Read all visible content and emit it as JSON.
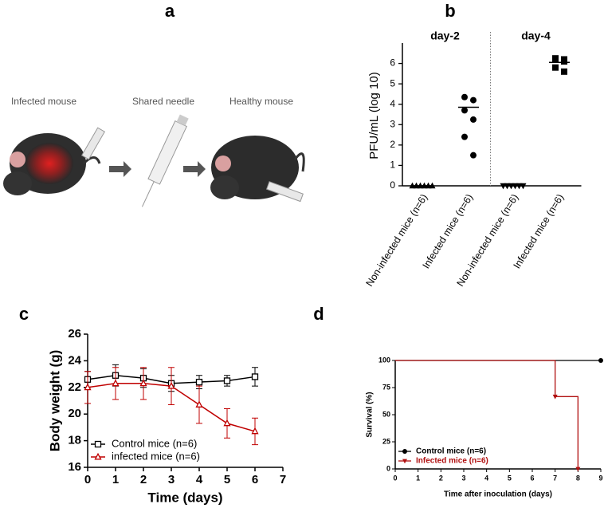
{
  "illustration": {
    "label": "a",
    "captions": [
      "Infected mouse",
      "Shared needle",
      "Healthy mouse"
    ]
  },
  "chart_data": [
    {
      "type": "dot",
      "panel_label": "b",
      "ylabel": "PFU/mL (log 10)",
      "categories": [
        "Non-infected mice (n=6)",
        "Infected mice (n=6)",
        "Non-infected mice (n=6)",
        "Infected mice (n=6)"
      ],
      "groups": [
        "day-2",
        "day-4"
      ],
      "points": [
        [
          0,
          0,
          0,
          0,
          0,
          0
        ],
        [
          4.35,
          4.2,
          3.7,
          3.25,
          2.4,
          1.5
        ],
        [
          0,
          0,
          0,
          0,
          0,
          0
        ],
        [
          6.25,
          6.2,
          6.2,
          6.1,
          5.8,
          5.6
        ]
      ],
      "medians": [
        0,
        3.85,
        0,
        6.05
      ],
      "markers": [
        "triangle",
        "circle",
        "triangle-down",
        "square"
      ],
      "color": "#000000",
      "ylim": [
        0,
        7
      ],
      "yticks": [
        0,
        1,
        2,
        3,
        4,
        5,
        6
      ]
    },
    {
      "type": "line",
      "panel_label": "c",
      "xlabel": "Time (days)",
      "ylabel": "Body weight (g)",
      "x": [
        0,
        1,
        2,
        3,
        4,
        5,
        6
      ],
      "series": [
        {
          "name": "Control mice (n=6)",
          "color": "#000000",
          "marker": "square",
          "values": [
            22.6,
            22.9,
            22.7,
            22.3,
            22.4,
            22.5,
            22.8
          ],
          "errors": [
            0.6,
            0.8,
            0.7,
            0.6,
            0.5,
            0.4,
            0.7
          ]
        },
        {
          "name": "infected mice (n=6)",
          "color": "#c00000",
          "marker": "triangle",
          "values": [
            22.0,
            22.3,
            22.3,
            22.1,
            20.7,
            19.3,
            18.7
          ],
          "errors": [
            1.2,
            1.2,
            1.2,
            1.4,
            1.4,
            1.1,
            1.0
          ]
        }
      ],
      "xlim": [
        0,
        7
      ],
      "xticks": [
        0,
        1,
        2,
        3,
        4,
        5,
        6,
        7
      ],
      "ylim": [
        16,
        26
      ],
      "yticks": [
        16,
        18,
        20,
        22,
        24,
        26
      ],
      "legend": "lower-left"
    },
    {
      "type": "step",
      "panel_label": "d",
      "xlabel": "Time after inoculation (days)",
      "ylabel": "Survival (%)",
      "series": [
        {
          "name": "Control mice (n=6)",
          "color": "#000000",
          "marker": "circle",
          "x": [
            0,
            9
          ],
          "values": [
            100,
            100
          ]
        },
        {
          "name": "Infected mice (n=6)",
          "color": "#b01010",
          "marker": "triangle-down",
          "x": [
            0,
            7,
            8
          ],
          "values": [
            100,
            66.7,
            0
          ]
        }
      ],
      "xlim": [
        0,
        9
      ],
      "xticks": [
        0,
        1,
        2,
        3,
        4,
        5,
        6,
        7,
        8,
        9
      ],
      "ylim": [
        0,
        100
      ],
      "yticks": [
        0,
        25,
        50,
        75,
        100
      ],
      "legend": "lower-left"
    }
  ]
}
